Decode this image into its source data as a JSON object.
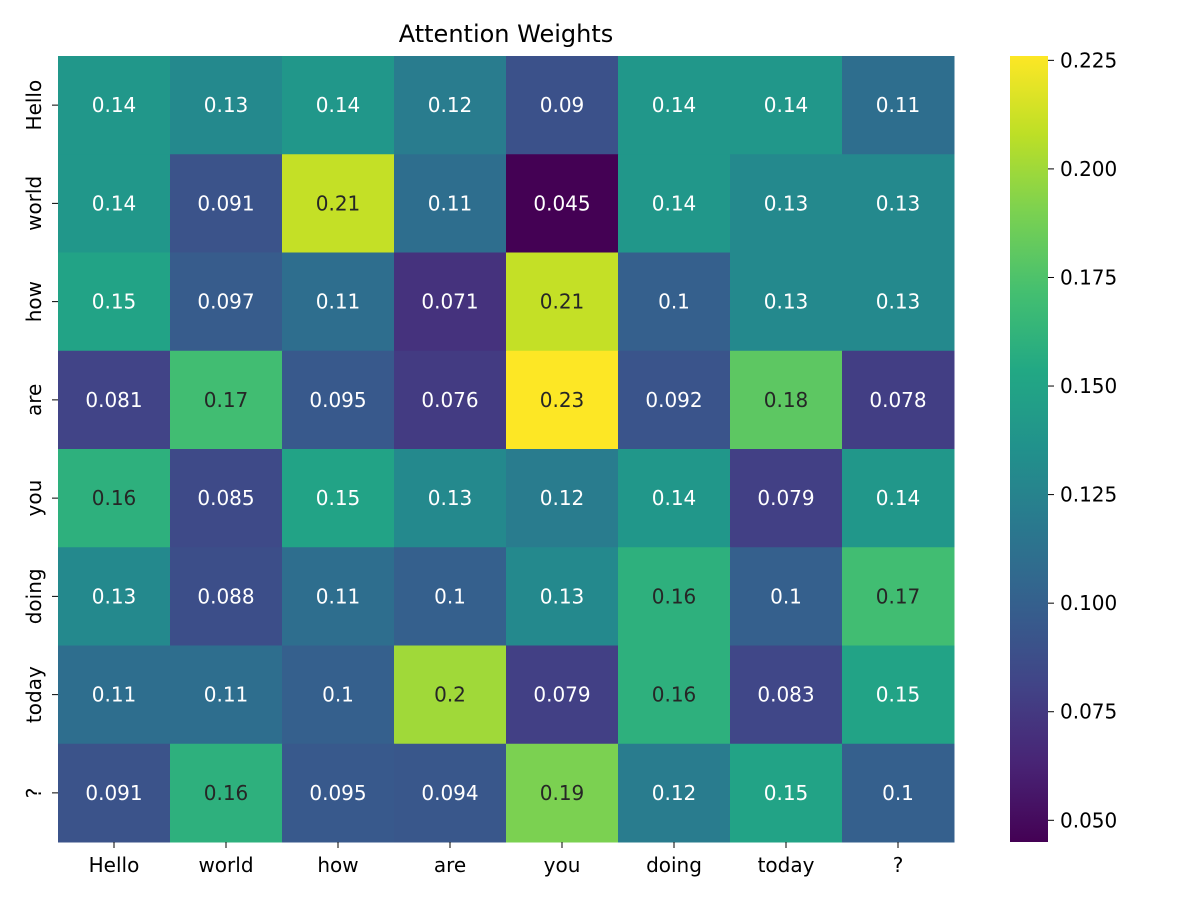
{
  "chart_data": {
    "type": "heatmap",
    "title": "Attention Weights",
    "xlabel": "",
    "ylabel": "",
    "x_categories": [
      "Hello",
      "world",
      "how",
      "are",
      "you",
      "doing",
      "today",
      "?"
    ],
    "y_categories": [
      "Hello",
      "world",
      "how",
      "are",
      "you",
      "doing",
      "today",
      "?"
    ],
    "values": [
      [
        0.14,
        0.13,
        0.14,
        0.12,
        0.09,
        0.14,
        0.14,
        0.11
      ],
      [
        0.14,
        0.091,
        0.21,
        0.11,
        0.045,
        0.14,
        0.13,
        0.13
      ],
      [
        0.15,
        0.097,
        0.11,
        0.071,
        0.21,
        0.1,
        0.13,
        0.13
      ],
      [
        0.081,
        0.17,
        0.095,
        0.076,
        0.23,
        0.092,
        0.18,
        0.078
      ],
      [
        0.16,
        0.085,
        0.15,
        0.13,
        0.12,
        0.14,
        0.079,
        0.14
      ],
      [
        0.13,
        0.088,
        0.11,
        0.1,
        0.13,
        0.16,
        0.1,
        0.17
      ],
      [
        0.11,
        0.11,
        0.1,
        0.2,
        0.079,
        0.16,
        0.083,
        0.15
      ],
      [
        0.091,
        0.16,
        0.095,
        0.094,
        0.19,
        0.12,
        0.15,
        0.1
      ]
    ],
    "colormap": "viridis",
    "vmin": 0.045,
    "vmax": 0.226,
    "colorbar_ticks": [
      0.05,
      0.075,
      0.1,
      0.125,
      0.15,
      0.175,
      0.2,
      0.225
    ],
    "colorbar_tick_labels": [
      "0.050",
      "0.075",
      "0.100",
      "0.125",
      "0.150",
      "0.175",
      "0.200",
      "0.225"
    ],
    "annotation_colors": {
      "light": "#ffffff",
      "dark": "#262626"
    },
    "grid": false,
    "legend": "colorbar-right"
  }
}
